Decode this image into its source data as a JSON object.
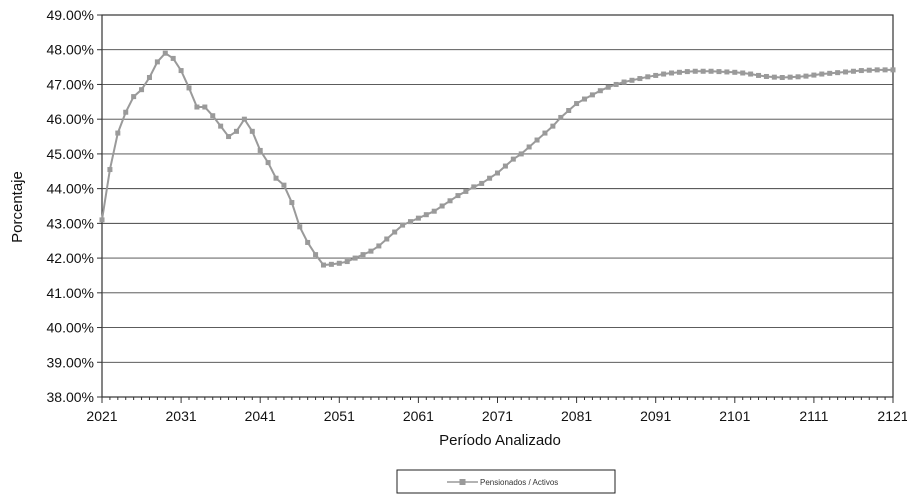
{
  "chart_data": {
    "type": "line",
    "title": "",
    "xlabel": "Período Analizado",
    "ylabel": "Porcentaje",
    "xlim": [
      2021,
      2121
    ],
    "ylim": [
      38,
      49
    ],
    "grid": true,
    "legend_position": "bottom-center",
    "x_ticks": [
      "2021",
      "2031",
      "2041",
      "2051",
      "2061",
      "2071",
      "2081",
      "2091",
      "2101",
      "2111",
      "2121"
    ],
    "y_ticks": [
      "38.00%",
      "39.00%",
      "40.00%",
      "41.00%",
      "42.00%",
      "43.00%",
      "44.00%",
      "45.00%",
      "46.00%",
      "47.00%",
      "48.00%",
      "49.00%"
    ],
    "series": [
      {
        "name": "Pensionados / Activos",
        "color": "#9a9a9a",
        "x": [
          2021,
          2022,
          2023,
          2024,
          2025,
          2026,
          2027,
          2028,
          2029,
          2030,
          2031,
          2032,
          2033,
          2034,
          2035,
          2036,
          2037,
          2038,
          2039,
          2040,
          2041,
          2042,
          2043,
          2044,
          2045,
          2046,
          2047,
          2048,
          2049,
          2050,
          2051,
          2052,
          2053,
          2054,
          2055,
          2056,
          2057,
          2058,
          2059,
          2060,
          2061,
          2062,
          2063,
          2064,
          2065,
          2066,
          2067,
          2068,
          2069,
          2070,
          2071,
          2072,
          2073,
          2074,
          2075,
          2076,
          2077,
          2078,
          2079,
          2080,
          2081,
          2082,
          2083,
          2084,
          2085,
          2086,
          2087,
          2088,
          2089,
          2090,
          2091,
          2092,
          2093,
          2094,
          2095,
          2096,
          2097,
          2098,
          2099,
          2100,
          2101,
          2102,
          2103,
          2104,
          2105,
          2106,
          2107,
          2108,
          2109,
          2110,
          2111,
          2112,
          2113,
          2114,
          2115,
          2116,
          2117,
          2118,
          2119,
          2120,
          2121
        ],
        "values": [
          43.1,
          44.55,
          45.6,
          46.2,
          46.65,
          46.85,
          47.2,
          47.65,
          47.9,
          47.75,
          47.4,
          46.9,
          46.35,
          46.35,
          46.1,
          45.8,
          45.5,
          45.65,
          46.0,
          45.65,
          45.1,
          44.75,
          44.3,
          44.1,
          43.6,
          42.9,
          42.45,
          42.1,
          41.8,
          41.82,
          41.85,
          41.9,
          42.0,
          42.1,
          42.2,
          42.35,
          42.55,
          42.75,
          42.95,
          43.05,
          43.15,
          43.25,
          43.35,
          43.5,
          43.65,
          43.8,
          43.92,
          44.05,
          44.15,
          44.3,
          44.45,
          44.65,
          44.85,
          45.0,
          45.2,
          45.4,
          45.6,
          45.8,
          46.05,
          46.25,
          46.45,
          46.58,
          46.7,
          46.82,
          46.92,
          47.0,
          47.07,
          47.12,
          47.17,
          47.22,
          47.26,
          47.3,
          47.33,
          47.35,
          47.37,
          47.38,
          47.38,
          47.38,
          47.37,
          47.36,
          47.35,
          47.33,
          47.3,
          47.26,
          47.23,
          47.21,
          47.2,
          47.21,
          47.22,
          47.24,
          47.27,
          47.3,
          47.32,
          47.34,
          47.36,
          47.38,
          47.4,
          47.41,
          47.42,
          47.42,
          47.42
        ]
      }
    ]
  }
}
